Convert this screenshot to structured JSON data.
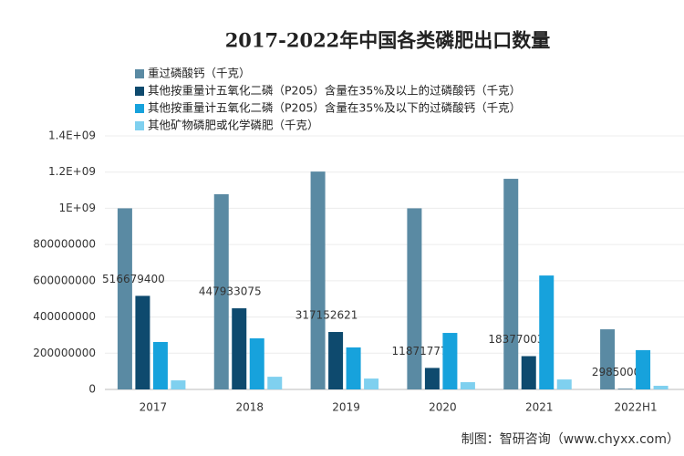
{
  "chart_data": {
    "type": "bar",
    "title": "2017-2022年中国各类磷肥出口数量",
    "categories": [
      "2017",
      "2018",
      "2019",
      "2020",
      "2021",
      "2022H1"
    ],
    "series": [
      {
        "name": "重过磷酸钙（千克）",
        "color": "#5a8aa3",
        "values": [
          1000000000,
          1078000000,
          1203000000,
          1000000000,
          1163000000,
          332000000
        ]
      },
      {
        "name": "其他按重量计五氧化二磷（P205）含量在35%及以上的过磷酸钙（千克）",
        "color": "#0e4a6e",
        "values": [
          516679400,
          447933075,
          317152621,
          118717779,
          183770030,
          2985000
        ],
        "data_labels": true
      },
      {
        "name": "其他按重量计五氧化二磷（P205）含量在35%及以下的过磷酸钙（千克）",
        "color": "#17a2dc",
        "values": [
          262000000,
          282000000,
          232000000,
          312000000,
          629000000,
          217000000
        ]
      },
      {
        "name": "其他矿物磷肥或化学磷肥（千克）",
        "color": "#7fd0ef",
        "values": [
          50000000,
          70000000,
          60000000,
          40000000,
          55000000,
          20000000
        ]
      }
    ],
    "ylim": [
      0,
      1400000000
    ],
    "yticks": [
      0,
      200000000,
      400000000,
      600000000,
      800000000,
      {
        "value": 1000000000,
        "label": "1E+09"
      },
      {
        "value": 1200000000,
        "label": "1.2E+09"
      },
      {
        "value": 1400000000,
        "label": "1.4E+09"
      }
    ],
    "grid": true,
    "source": "制图：智研咨询（www.chyxx.com）"
  }
}
